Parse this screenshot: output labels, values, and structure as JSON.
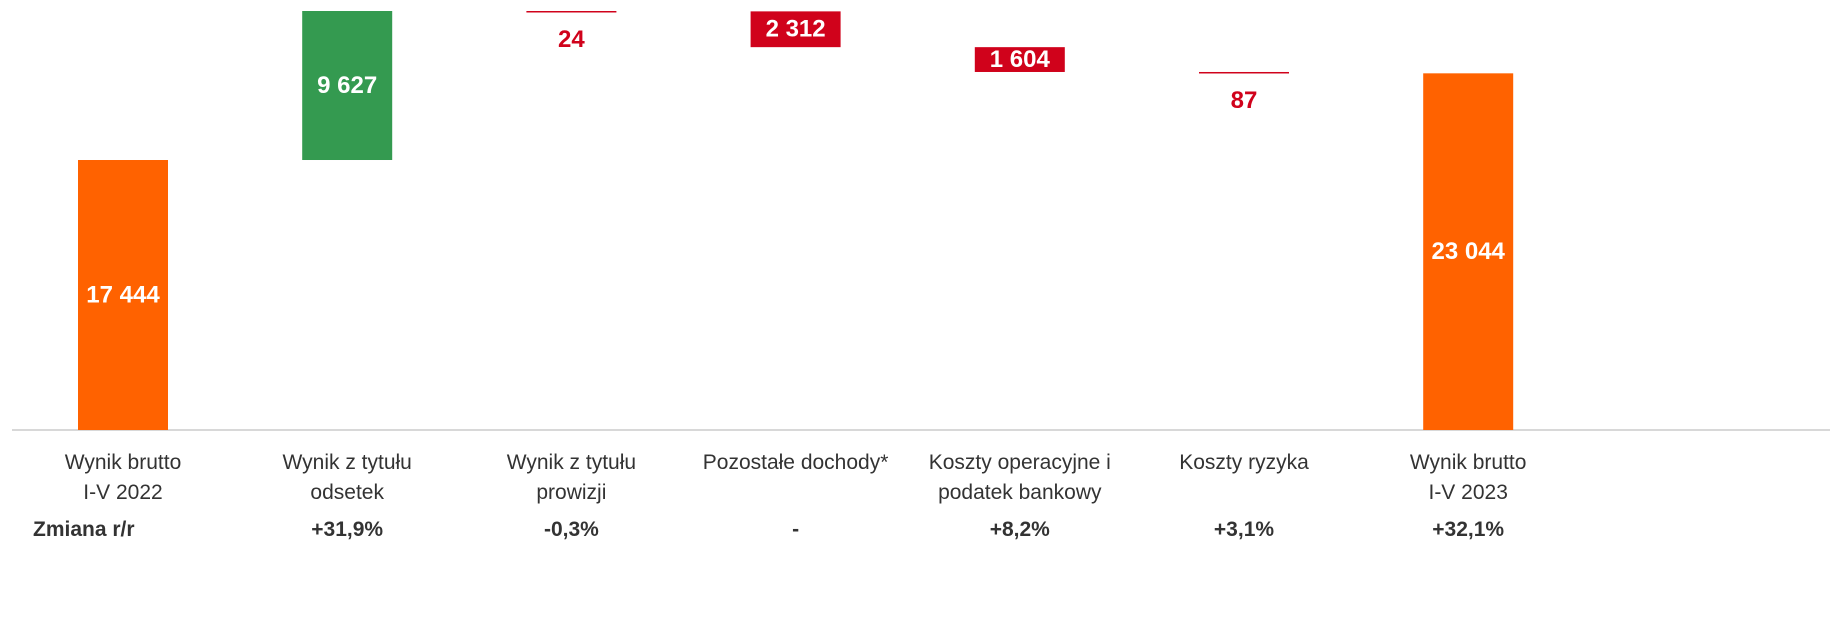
{
  "chart_data": {
    "type": "waterfall",
    "categories": [
      "Wynik brutto\nI-V 2022",
      "Wynik z tytułu\nodsetek",
      "Wynik z tytułu\nprowizji",
      "Pozostałe dochody*",
      "Koszty operacyjne i\npodatek bankowy",
      "Koszty ryzyka",
      "Wynik brutto\nI-V 2023"
    ],
    "values": [
      17444,
      9627,
      -24,
      -2312,
      -1604,
      -87,
      23044
    ],
    "value_labels": [
      "17 444",
      "9 627",
      "24",
      "2 312",
      "1 604",
      "87",
      "23 044"
    ],
    "kinds": [
      "total",
      "increase",
      "decrease",
      "decrease",
      "decrease",
      "decrease",
      "total"
    ],
    "colors": {
      "total": "#ff6200",
      "increase": "#349a50",
      "decrease": "#d0021b"
    },
    "change_label": "Zmiana r/r",
    "changes": [
      null,
      "+31,9%",
      "-0,3%",
      "-",
      "+8,2%",
      "+3,1%",
      "+32,1%"
    ]
  }
}
